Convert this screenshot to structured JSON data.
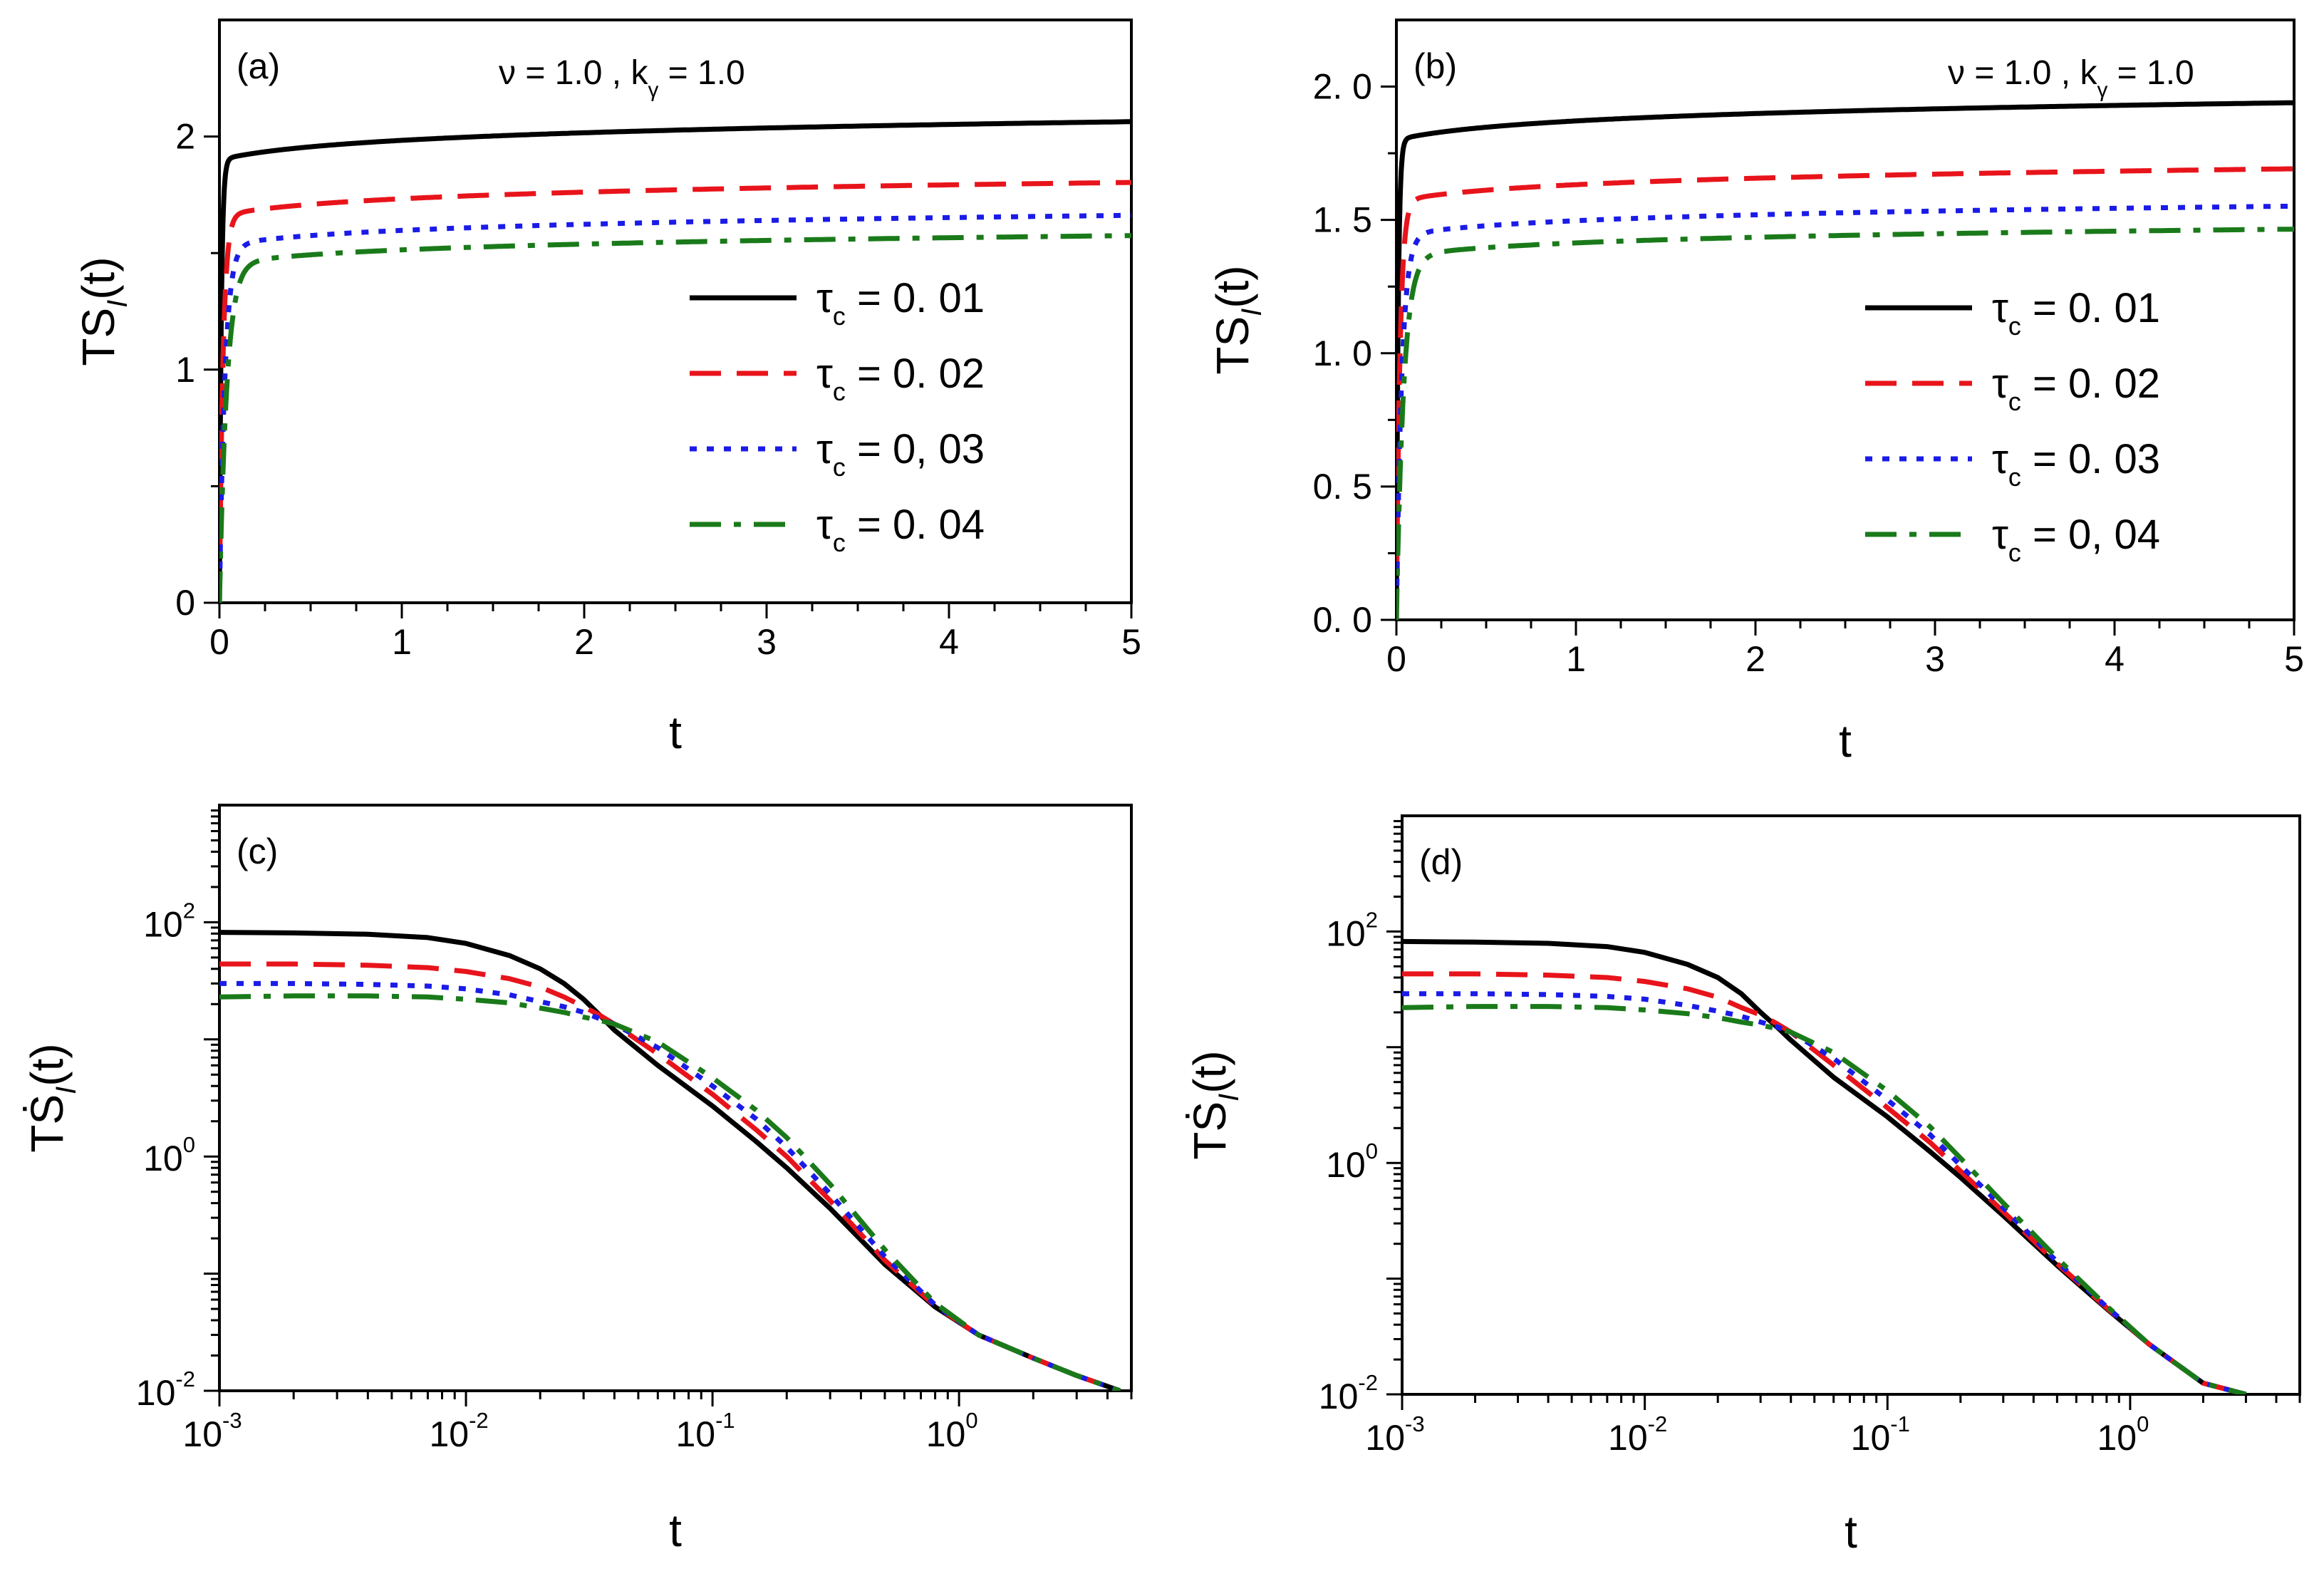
{
  "chart_data": [
    {
      "panel": "(a)",
      "type": "line",
      "xscale": "linear",
      "yscale": "linear",
      "annotation": [
        "ν",
        " = 1.0 , k",
        "γ",
        " = 1.0"
      ],
      "xlabel": "t",
      "ylabel": [
        "TS",
        "I",
        "(t)"
      ],
      "xlim": [
        0,
        5
      ],
      "ylim": [
        0,
        2.5
      ],
      "xticks": [
        0,
        1,
        2,
        3,
        4,
        5
      ],
      "xtick_labels": [
        "0",
        "1",
        "2",
        "3",
        "4",
        "5"
      ],
      "yticks": [
        0,
        1,
        2
      ],
      "ytick_labels": [
        "0",
        "1",
        "2"
      ],
      "legend": {
        "position": "center-right",
        "entries": [
          {
            "sym": "τ",
            "sub": "c",
            "text": " = 0. 01"
          },
          {
            "sym": "τ",
            "sub": "c",
            "text": " = 0. 02"
          },
          {
            "sym": "τ",
            "sub": "c",
            "text": " = 0, 03"
          },
          {
            "sym": "τ",
            "sub": "c",
            "text": " = 0. 04"
          }
        ]
      },
      "series": [
        {
          "name": "τc = 0.01",
          "color": "#000000",
          "dash": "solid",
          "tau": 0.01,
          "plateau": 1.9,
          "slope": 0.03
        },
        {
          "name": "τc = 0.02",
          "color": "#e8141b",
          "dash": "dash",
          "tau": 0.02,
          "plateau": 1.66,
          "slope": 0.03
        },
        {
          "name": "τc = 0.03",
          "color": "#1b1be8",
          "dash": "dot",
          "tau": 0.03,
          "plateau": 1.53,
          "slope": 0.03
        },
        {
          "name": "τc = 0.04",
          "color": "#1a7a1a",
          "dash": "dashdot",
          "tau": 0.04,
          "plateau": 1.45,
          "slope": 0.03
        }
      ]
    },
    {
      "panel": "(b)",
      "type": "line",
      "xscale": "linear",
      "yscale": "linear",
      "annotation": [
        "ν",
        " = 1.0 , k",
        "γ",
        " = 1.0"
      ],
      "xlabel": "t",
      "ylabel": [
        "TS",
        "I",
        "(t)"
      ],
      "xlim": [
        0,
        5
      ],
      "ylim": [
        0,
        2.25
      ],
      "xticks": [
        0,
        1,
        2,
        3,
        4,
        5
      ],
      "xtick_labels": [
        "0",
        "1",
        "2",
        "3",
        "4",
        "5"
      ],
      "yticks": [
        0,
        0.5,
        1.0,
        1.5,
        2.0
      ],
      "ytick_labels": [
        "0. 0",
        "0. 5",
        "1. 0",
        "1. 5",
        "2. 0"
      ],
      "legend": {
        "position": "center-right",
        "entries": [
          {
            "sym": "τ",
            "sub": "c",
            "text": " = 0. 01"
          },
          {
            "sym": "τ",
            "sub": "c",
            "text": " = 0. 02"
          },
          {
            "sym": "τ",
            "sub": "c",
            "text": " = 0. 03"
          },
          {
            "sym": "τ",
            "sub": "c",
            "text": " = 0, 04"
          }
        ]
      },
      "series": [
        {
          "name": "τc = 0.01",
          "color": "#000000",
          "dash": "solid",
          "tau": 0.01,
          "plateau": 1.8,
          "slope": 0.027
        },
        {
          "name": "τc = 0.02",
          "color": "#e8141b",
          "dash": "dash",
          "tau": 0.02,
          "plateau": 1.57,
          "slope": 0.027
        },
        {
          "name": "τc = 0.03",
          "color": "#1b1be8",
          "dash": "dot",
          "tau": 0.03,
          "plateau": 1.44,
          "slope": 0.027
        },
        {
          "name": "τc = 0.04",
          "color": "#1a7a1a",
          "dash": "dashdot",
          "tau": 0.04,
          "plateau": 1.36,
          "slope": 0.027
        }
      ]
    },
    {
      "panel": "(c)",
      "type": "line",
      "xscale": "log",
      "yscale": "log",
      "xlabel": "t",
      "ylabel": [
        "TṠ",
        "I",
        "(t)"
      ],
      "xlim": [
        0.001,
        5
      ],
      "ylim": [
        0.01,
        1000
      ],
      "xticks": [
        0.001,
        0.01,
        0.1,
        1
      ],
      "xtick_labels": [
        [
          "10",
          "-3"
        ],
        [
          "10",
          "-2"
        ],
        [
          "10",
          "-1"
        ],
        [
          "10",
          "0"
        ]
      ],
      "yticks": [
        0.01,
        1,
        100
      ],
      "ytick_labels": [
        [
          "10",
          "-2"
        ],
        [
          "10",
          "0"
        ],
        [
          "10",
          "2"
        ]
      ],
      "series": [
        {
          "name": "τc = 0.01",
          "color": "#000000",
          "dash": "solid",
          "x": [
            0.001,
            0.002,
            0.004,
            0.007,
            0.01,
            0.015,
            0.02,
            0.025,
            0.03,
            0.035,
            0.04,
            0.06,
            0.1,
            0.15,
            0.2,
            0.3,
            0.5,
            0.8,
            1.2,
            2,
            3,
            4.5
          ],
          "y": [
            82,
            81,
            79,
            74,
            66,
            52,
            40,
            30,
            22,
            16,
            12,
            6,
            2.7,
            1.35,
            0.8,
            0.36,
            0.12,
            0.052,
            0.03,
            0.019,
            0.0135,
            0.01
          ]
        },
        {
          "name": "τc = 0.02",
          "color": "#e8141b",
          "dash": "dash",
          "x": [
            0.001,
            0.002,
            0.004,
            0.007,
            0.01,
            0.015,
            0.02,
            0.025,
            0.03,
            0.035,
            0.04,
            0.06,
            0.1,
            0.15,
            0.2,
            0.3,
            0.5,
            0.8,
            1.2,
            2,
            3,
            4.5
          ],
          "y": [
            44,
            44,
            43,
            41,
            38,
            33,
            28,
            23,
            19,
            16,
            13.5,
            7.5,
            3.4,
            1.7,
            1.0,
            0.42,
            0.13,
            0.053,
            0.03,
            0.019,
            0.0135,
            0.01
          ]
        },
        {
          "name": "τc = 0.03",
          "color": "#1b1be8",
          "dash": "dot",
          "x": [
            0.001,
            0.002,
            0.004,
            0.007,
            0.01,
            0.015,
            0.02,
            0.025,
            0.03,
            0.035,
            0.04,
            0.06,
            0.1,
            0.15,
            0.2,
            0.3,
            0.5,
            0.8,
            1.2,
            2,
            3,
            4.5
          ],
          "y": [
            30,
            30,
            29.5,
            28.5,
            27,
            24,
            21,
            19,
            17,
            15,
            13.5,
            8.5,
            4.0,
            2.1,
            1.2,
            0.48,
            0.14,
            0.054,
            0.03,
            0.019,
            0.0135,
            0.01
          ]
        },
        {
          "name": "τc = 0.04",
          "color": "#1a7a1a",
          "dash": "dashdot",
          "x": [
            0.001,
            0.002,
            0.004,
            0.007,
            0.01,
            0.015,
            0.02,
            0.025,
            0.03,
            0.035,
            0.04,
            0.06,
            0.1,
            0.15,
            0.2,
            0.3,
            0.5,
            0.8,
            1.2,
            2,
            3,
            4.5
          ],
          "y": [
            23,
            23.5,
            23.5,
            23,
            22,
            20.5,
            18.5,
            17,
            15.5,
            14.5,
            13.5,
            9.5,
            4.7,
            2.5,
            1.45,
            0.58,
            0.16,
            0.056,
            0.03,
            0.019,
            0.0135,
            0.01
          ]
        }
      ]
    },
    {
      "panel": "(d)",
      "type": "line",
      "xscale": "log",
      "yscale": "log",
      "xlabel": "t",
      "ylabel": [
        "TṠ",
        "I",
        "(t)"
      ],
      "xlim": [
        0.001,
        5
      ],
      "ylim": [
        0.01,
        1000
      ],
      "xticks": [
        0.001,
        0.01,
        0.1,
        1
      ],
      "xtick_labels": [
        [
          "10",
          "-3"
        ],
        [
          "10",
          "-2"
        ],
        [
          "10",
          "-1"
        ],
        [
          "10",
          "0"
        ]
      ],
      "yticks": [
        0.01,
        1,
        100
      ],
      "ytick_labels": [
        [
          "10",
          "-2"
        ],
        [
          "10",
          "0"
        ],
        [
          "10",
          "2"
        ]
      ],
      "series": [
        {
          "name": "τc = 0.01",
          "color": "#000000",
          "dash": "solid",
          "x": [
            0.001,
            0.002,
            0.004,
            0.007,
            0.01,
            0.015,
            0.02,
            0.025,
            0.03,
            0.035,
            0.04,
            0.06,
            0.1,
            0.15,
            0.2,
            0.3,
            0.5,
            0.8,
            1.2,
            2,
            3
          ],
          "y": [
            82,
            81,
            79,
            74,
            66,
            52,
            40,
            29,
            20,
            15,
            11.5,
            5.5,
            2.5,
            1.25,
            0.75,
            0.35,
            0.13,
            0.055,
            0.027,
            0.0125,
            0.01
          ]
        },
        {
          "name": "τc = 0.02",
          "color": "#e8141b",
          "dash": "dash",
          "x": [
            0.001,
            0.002,
            0.004,
            0.007,
            0.01,
            0.015,
            0.02,
            0.025,
            0.03,
            0.035,
            0.04,
            0.06,
            0.1,
            0.15,
            0.2,
            0.3,
            0.5,
            0.8,
            1.2,
            2,
            3
          ],
          "y": [
            43,
            43,
            42,
            40,
            37,
            32,
            27,
            22,
            19,
            16,
            13.5,
            7,
            3.0,
            1.5,
            0.85,
            0.38,
            0.135,
            0.056,
            0.027,
            0.0125,
            0.01
          ]
        },
        {
          "name": "τc = 0.03",
          "color": "#1b1be8",
          "dash": "dot",
          "x": [
            0.001,
            0.002,
            0.004,
            0.007,
            0.01,
            0.015,
            0.02,
            0.025,
            0.03,
            0.035,
            0.04,
            0.06,
            0.1,
            0.15,
            0.2,
            0.3,
            0.5,
            0.8,
            1.2,
            2,
            3
          ],
          "y": [
            29,
            29,
            28.5,
            27.5,
            26,
            23,
            20.5,
            18.5,
            16.5,
            15,
            13.5,
            8,
            3.5,
            1.75,
            0.95,
            0.41,
            0.14,
            0.057,
            0.027,
            0.0125,
            0.01
          ]
        },
        {
          "name": "τc = 0.04",
          "color": "#1a7a1a",
          "dash": "dashdot",
          "x": [
            0.001,
            0.002,
            0.004,
            0.007,
            0.01,
            0.015,
            0.02,
            0.025,
            0.03,
            0.035,
            0.04,
            0.06,
            0.1,
            0.15,
            0.2,
            0.3,
            0.5,
            0.8,
            1.2,
            2,
            3
          ],
          "y": [
            22,
            22.5,
            22.5,
            22,
            21,
            19.5,
            18,
            16.5,
            15.5,
            14.5,
            13.5,
            9,
            4.2,
            2.05,
            1.1,
            0.45,
            0.15,
            0.058,
            0.027,
            0.0125,
            0.01
          ]
        }
      ]
    }
  ]
}
